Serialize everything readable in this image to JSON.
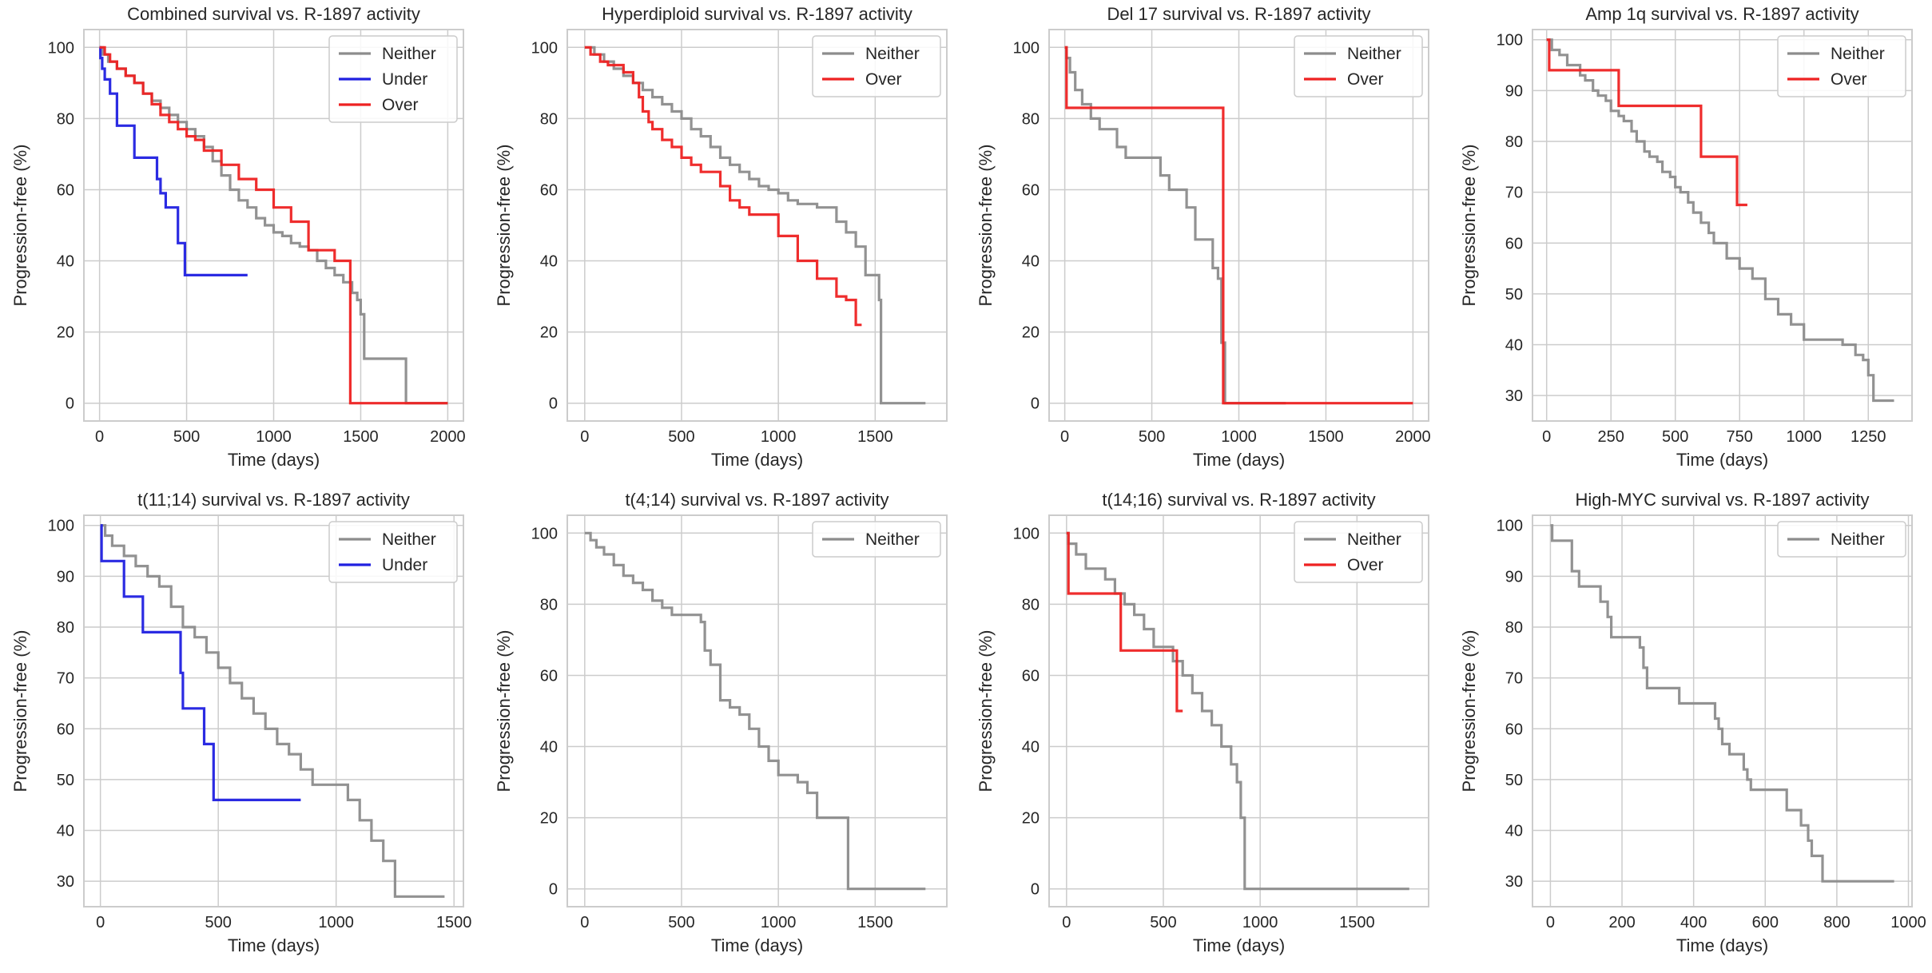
{
  "colors": {
    "Neither": "#8c8c8c",
    "Under": "#2020e0",
    "Over": "#ee2222",
    "grid": "#cccccc"
  },
  "chart_data": [
    {
      "type": "line",
      "id": "combined",
      "title": "Combined survival vs. R-1897 activity",
      "xlabel": "Time (days)",
      "ylabel": "Progression-free (%)",
      "xlim": [
        -90,
        2090
      ],
      "ylim": [
        -5,
        105
      ],
      "xticks": [
        0,
        500,
        1000,
        1500,
        2000
      ],
      "yticks": [
        0,
        20,
        40,
        60,
        80,
        100
      ],
      "legend": "top-right",
      "series": [
        {
          "name": "Neither",
          "x": [
            0,
            20,
            50,
            100,
            150,
            200,
            250,
            300,
            350,
            400,
            450,
            500,
            550,
            600,
            650,
            700,
            750,
            800,
            850,
            900,
            950,
            1000,
            1050,
            1100,
            1150,
            1200,
            1250,
            1300,
            1350,
            1400,
            1450,
            1480,
            1500,
            1520,
            1750,
            1760,
            2000
          ],
          "y": [
            100,
            98,
            96,
            94,
            92,
            90,
            87,
            85,
            83,
            81,
            79,
            77,
            75,
            72,
            68,
            64,
            60,
            57,
            55,
            52,
            50,
            48,
            47,
            45,
            44,
            43,
            40,
            38,
            36,
            34,
            31,
            29,
            25,
            12.5,
            12.5,
            0,
            0
          ]
        },
        {
          "name": "Under",
          "x": [
            0,
            5,
            15,
            30,
            60,
            100,
            200,
            300,
            330,
            350,
            380,
            430,
            450,
            480,
            490,
            850
          ],
          "y": [
            100,
            97,
            94,
            91,
            87,
            78,
            69,
            69,
            63,
            59,
            55,
            55,
            45,
            45,
            36,
            36
          ]
        },
        {
          "name": "Over",
          "x": [
            0,
            30,
            60,
            100,
            150,
            200,
            250,
            300,
            350,
            400,
            450,
            500,
            550,
            600,
            650,
            700,
            800,
            900,
            1000,
            1100,
            1200,
            1300,
            1350,
            1420,
            1440,
            2000
          ],
          "y": [
            100,
            98,
            96,
            94,
            92,
            90,
            87,
            84,
            81,
            79,
            77,
            75,
            74,
            71,
            71,
            67,
            63,
            60,
            55,
            51,
            43,
            43,
            40,
            40,
            0,
            0
          ]
        }
      ]
    },
    {
      "type": "line",
      "id": "hyperdiploid",
      "title": "Hyperdiploid survival vs. R-1897 activity",
      "xlabel": "Time (days)",
      "ylabel": "Progression-free (%)",
      "xlim": [
        -90,
        1870
      ],
      "ylim": [
        -5,
        105
      ],
      "xticks": [
        0,
        500,
        1000,
        1500
      ],
      "yticks": [
        0,
        20,
        40,
        60,
        80,
        100
      ],
      "legend": "top-right",
      "series": [
        {
          "name": "Neither",
          "x": [
            0,
            50,
            100,
            150,
            200,
            250,
            300,
            350,
            400,
            450,
            500,
            550,
            600,
            650,
            700,
            750,
            800,
            850,
            900,
            950,
            1000,
            1050,
            1100,
            1200,
            1300,
            1350,
            1400,
            1450,
            1500,
            1520,
            1530,
            1760
          ],
          "y": [
            100,
            98,
            96,
            94,
            92,
            90,
            88,
            86,
            84,
            82,
            80,
            77,
            75,
            72,
            69,
            67,
            65,
            63,
            61,
            60,
            59,
            57,
            56,
            55,
            51,
            48,
            44,
            36,
            36,
            29,
            0,
            0
          ]
        },
        {
          "name": "Over",
          "x": [
            0,
            30,
            80,
            120,
            200,
            250,
            280,
            300,
            330,
            350,
            400,
            450,
            500,
            550,
            600,
            700,
            750,
            800,
            850,
            900,
            1000,
            1100,
            1200,
            1300,
            1350,
            1400,
            1430
          ],
          "y": [
            100,
            98,
            96,
            95,
            93,
            90,
            86,
            82,
            79,
            77,
            74,
            72,
            69,
            67,
            65,
            61,
            57,
            55,
            53,
            53,
            47,
            40,
            35,
            30,
            29,
            22,
            22
          ]
        }
      ]
    },
    {
      "type": "line",
      "id": "del17",
      "title": "Del 17 survival vs. R-1897 activity",
      "xlabel": "Time (days)",
      "ylabel": "Progression-free (%)",
      "xlim": [
        -90,
        2090
      ],
      "ylim": [
        -5,
        105
      ],
      "xticks": [
        0,
        500,
        1000,
        1500,
        2000
      ],
      "yticks": [
        0,
        20,
        40,
        60,
        80,
        100
      ],
      "legend": "top-right",
      "series": [
        {
          "name": "Neither",
          "x": [
            0,
            10,
            30,
            60,
            100,
            150,
            200,
            300,
            350,
            550,
            600,
            700,
            750,
            850,
            880,
            900,
            920,
            1270
          ],
          "y": [
            100,
            97,
            93,
            88,
            84,
            80,
            77,
            72,
            69,
            64,
            60,
            55,
            46,
            38,
            35,
            17,
            0,
            0
          ]
        },
        {
          "name": "Over",
          "x": [
            0,
            10,
            900,
            910,
            2000
          ],
          "y": [
            100,
            83,
            83,
            0,
            0
          ]
        }
      ]
    },
    {
      "type": "line",
      "id": "amp1q",
      "title": "Amp 1q survival vs. R-1897 activity",
      "xlabel": "Time (days)",
      "ylabel": "Progression-free (%)",
      "xlim": [
        -55,
        1420
      ],
      "ylim": [
        25,
        102
      ],
      "xticks": [
        0,
        250,
        500,
        750,
        1000,
        1250
      ],
      "yticks": [
        30,
        40,
        50,
        60,
        70,
        80,
        90,
        100
      ],
      "legend": "top-right",
      "series": [
        {
          "name": "Neither",
          "x": [
            0,
            20,
            50,
            80,
            100,
            130,
            150,
            180,
            200,
            230,
            250,
            280,
            300,
            330,
            350,
            380,
            400,
            430,
            450,
            480,
            500,
            520,
            550,
            570,
            600,
            630,
            650,
            700,
            750,
            800,
            850,
            900,
            950,
            1000,
            1100,
            1150,
            1200,
            1230,
            1250,
            1270,
            1350
          ],
          "y": [
            100,
            98,
            97,
            95,
            95,
            93,
            92,
            90,
            89,
            88,
            86,
            85,
            84,
            82,
            80,
            78,
            77,
            76,
            74,
            73,
            71,
            70,
            68,
            66,
            64,
            62,
            60,
            57,
            55,
            53,
            49,
            46,
            44,
            41,
            41,
            40,
            38,
            37,
            34,
            29,
            29
          ]
        },
        {
          "name": "Over",
          "x": [
            0,
            10,
            270,
            280,
            590,
            600,
            730,
            740,
            780
          ],
          "y": [
            100,
            94,
            94,
            87,
            87,
            77,
            77,
            67.5,
            67.5
          ]
        }
      ]
    },
    {
      "type": "line",
      "id": "t1114",
      "title": "t(11;14) survival vs. R-1897 activity",
      "xlabel": "Time (days)",
      "ylabel": "Progression-free (%)",
      "xlim": [
        -70,
        1540
      ],
      "ylim": [
        25,
        102
      ],
      "xticks": [
        0,
        500,
        1000,
        1500
      ],
      "yticks": [
        30,
        40,
        50,
        60,
        70,
        80,
        90,
        100
      ],
      "legend": "top-right",
      "series": [
        {
          "name": "Neither",
          "x": [
            0,
            20,
            50,
            100,
            150,
            200,
            250,
            300,
            350,
            400,
            450,
            500,
            550,
            600,
            650,
            700,
            750,
            800,
            850,
            900,
            1000,
            1050,
            1100,
            1150,
            1200,
            1250,
            1460
          ],
          "y": [
            100,
            98,
            96,
            94,
            92,
            90,
            88,
            84,
            80,
            78,
            75,
            72,
            69,
            66,
            63,
            60,
            57,
            55,
            52,
            49,
            49,
            46,
            42,
            38,
            34,
            27,
            27
          ]
        },
        {
          "name": "Under",
          "x": [
            0,
            5,
            50,
            100,
            160,
            180,
            340,
            350,
            440,
            480,
            850
          ],
          "y": [
            100,
            93,
            93,
            86,
            86,
            79,
            71,
            64,
            57,
            46,
            46
          ]
        }
      ]
    },
    {
      "type": "line",
      "id": "t414",
      "title": "t(4;14) survival vs. R-1897 activity",
      "xlabel": "Time (days)",
      "ylabel": "Progression-free (%)",
      "xlim": [
        -90,
        1870
      ],
      "ylim": [
        -5,
        105
      ],
      "xticks": [
        0,
        500,
        1000,
        1500
      ],
      "yticks": [
        0,
        20,
        40,
        60,
        80,
        100
      ],
      "legend": "top-right",
      "series": [
        {
          "name": "Neither",
          "x": [
            0,
            30,
            60,
            100,
            150,
            200,
            250,
            300,
            350,
            400,
            450,
            500,
            550,
            600,
            620,
            650,
            700,
            750,
            800,
            850,
            900,
            950,
            1000,
            1100,
            1150,
            1200,
            1350,
            1360,
            1760
          ],
          "y": [
            100,
            98,
            96,
            94,
            91,
            88,
            86,
            84,
            81,
            79,
            77,
            77,
            77,
            75,
            67,
            63,
            53,
            51,
            49,
            45,
            40,
            36,
            32,
            30,
            27,
            20,
            20,
            0,
            0
          ]
        }
      ]
    },
    {
      "type": "line",
      "id": "t1416",
      "title": "t(14;16) survival vs. R-1897 activity",
      "xlabel": "Time (days)",
      "ylabel": "Progression-free (%)",
      "xlim": [
        -90,
        1870
      ],
      "ylim": [
        -5,
        105
      ],
      "xticks": [
        0,
        500,
        1000,
        1500
      ],
      "yticks": [
        0,
        20,
        40,
        60,
        80,
        100
      ],
      "legend": "top-right",
      "series": [
        {
          "name": "Neither",
          "x": [
            0,
            10,
            50,
            100,
            200,
            250,
            300,
            350,
            400,
            450,
            500,
            550,
            600,
            650,
            700,
            750,
            800,
            850,
            880,
            900,
            920,
            1770
          ],
          "y": [
            100,
            97,
            94,
            90,
            87,
            83,
            80,
            77,
            73,
            68,
            68,
            64,
            60,
            55,
            50,
            46,
            40,
            35,
            30,
            20,
            0,
            0
          ]
        },
        {
          "name": "Over",
          "x": [
            0,
            10,
            270,
            280,
            560,
            570,
            600
          ],
          "y": [
            100,
            83,
            83,
            67,
            67,
            50,
            50
          ]
        }
      ]
    },
    {
      "type": "line",
      "id": "highmyc",
      "title": "High-MYC survival vs. R-1897 activity",
      "xlabel": "Time (days)",
      "ylabel": "Progression-free (%)",
      "xlim": [
        -50,
        1010
      ],
      "ylim": [
        25,
        102
      ],
      "xticks": [
        0,
        200,
        400,
        600,
        800,
        1000
      ],
      "yticks": [
        30,
        40,
        50,
        60,
        70,
        80,
        90,
        100
      ],
      "legend": "top-right",
      "series": [
        {
          "name": "Neither",
          "x": [
            0,
            5,
            60,
            80,
            140,
            160,
            170,
            250,
            260,
            270,
            290,
            360,
            460,
            470,
            480,
            500,
            540,
            550,
            560,
            650,
            660,
            700,
            720,
            730,
            760,
            960
          ],
          "y": [
            100,
            97,
            91,
            88,
            85,
            82,
            78,
            76,
            72,
            68,
            68,
            65,
            62,
            60,
            57,
            55,
            52,
            50,
            48,
            48,
            44,
            41,
            38,
            35,
            30,
            30
          ]
        }
      ]
    }
  ]
}
